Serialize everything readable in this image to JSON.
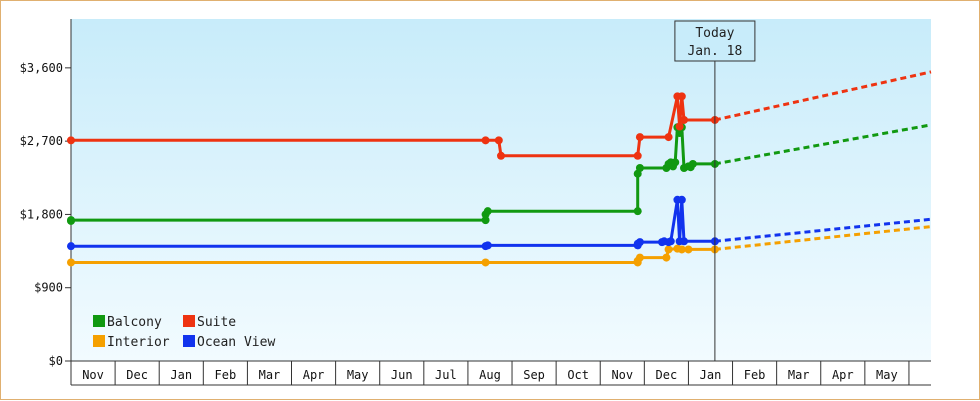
{
  "chart_data": {
    "type": "line",
    "title": "",
    "xlabel": "",
    "ylabel": "",
    "ylim": [
      0,
      4200
    ],
    "y_ticks": [
      {
        "value": 0,
        "label": "$0"
      },
      {
        "value": 900,
        "label": "$900"
      },
      {
        "value": 1800,
        "label": "$1,800"
      },
      {
        "value": 2700,
        "label": "$2,700"
      },
      {
        "value": 3600,
        "label": "$3,600"
      }
    ],
    "x_unit": "month index (0 = Nov, 1 = Dec, ...)",
    "xlim": [
      0,
      19.5
    ],
    "x_ticks": [
      "Nov",
      "Dec",
      "Jan",
      "Feb",
      "Mar",
      "Apr",
      "May",
      "Jun",
      "Jul",
      "Aug",
      "Sep",
      "Oct",
      "Nov",
      "Dec",
      "Jan",
      "Feb",
      "Mar",
      "Apr",
      "May"
    ],
    "today": {
      "line1": "Today",
      "line2": "Jan. 18",
      "x": 14.6
    },
    "grid": false,
    "legend_position": "bottom-left",
    "colors": {
      "Balcony": "#119911",
      "Suite": "#ee3311",
      "Interior": "#f5a000",
      "Ocean View": "#1133ee",
      "background_top": "#c8ecfa",
      "background_bottom": "#f2fbff"
    },
    "series": [
      {
        "name": "Balcony",
        "color": "#119911",
        "points": [
          [
            0,
            1720
          ],
          [
            0,
            1730
          ],
          [
            9.4,
            1730
          ],
          [
            9.4,
            1800
          ],
          [
            9.45,
            1840
          ],
          [
            12.85,
            1840
          ],
          [
            12.85,
            2300
          ],
          [
            12.9,
            2370
          ],
          [
            13.5,
            2370
          ],
          [
            13.55,
            2420
          ],
          [
            13.6,
            2440
          ],
          [
            13.65,
            2390
          ],
          [
            13.7,
            2440
          ],
          [
            13.75,
            2870
          ],
          [
            13.8,
            2800
          ],
          [
            13.85,
            2870
          ],
          [
            13.9,
            2370
          ],
          [
            14.0,
            2390
          ],
          [
            14.05,
            2380
          ],
          [
            14.1,
            2420
          ],
          [
            14.6,
            2420
          ]
        ],
        "projection": [
          [
            14.6,
            2420
          ],
          [
            19.5,
            2900
          ]
        ]
      },
      {
        "name": "Suite",
        "color": "#ee3311",
        "points": [
          [
            0,
            2710
          ],
          [
            9.4,
            2710
          ],
          [
            9.7,
            2710
          ],
          [
            9.75,
            2520
          ],
          [
            12.85,
            2520
          ],
          [
            12.9,
            2750
          ],
          [
            13.55,
            2750
          ],
          [
            13.75,
            3250
          ],
          [
            13.8,
            2880
          ],
          [
            13.85,
            3250
          ],
          [
            13.9,
            2960
          ],
          [
            14.6,
            2960
          ]
        ],
        "projection": [
          [
            14.6,
            2960
          ],
          [
            19.5,
            3550
          ]
        ]
      },
      {
        "name": "Interior",
        "color": "#f5a000",
        "points": [
          [
            0,
            1210
          ],
          [
            9.4,
            1210
          ],
          [
            12.85,
            1210
          ],
          [
            12.85,
            1230
          ],
          [
            12.9,
            1270
          ],
          [
            13.5,
            1270
          ],
          [
            13.55,
            1370
          ],
          [
            13.75,
            1380
          ],
          [
            13.85,
            1370
          ],
          [
            14.0,
            1370
          ],
          [
            14.6,
            1370
          ]
        ],
        "projection": [
          [
            14.6,
            1370
          ],
          [
            19.5,
            1650
          ]
        ]
      },
      {
        "name": "Ocean View",
        "color": "#1133ee",
        "points": [
          [
            0,
            1410
          ],
          [
            9.4,
            1410
          ],
          [
            9.45,
            1420
          ],
          [
            12.85,
            1420
          ],
          [
            12.85,
            1440
          ],
          [
            12.9,
            1460
          ],
          [
            13.4,
            1460
          ],
          [
            13.45,
            1470
          ],
          [
            13.55,
            1460
          ],
          [
            13.6,
            1470
          ],
          [
            13.75,
            1980
          ],
          [
            13.8,
            1470
          ],
          [
            13.85,
            1980
          ],
          [
            13.9,
            1470
          ],
          [
            14.6,
            1470
          ]
        ],
        "projection": [
          [
            14.6,
            1470
          ],
          [
            19.5,
            1740
          ]
        ]
      }
    ]
  }
}
